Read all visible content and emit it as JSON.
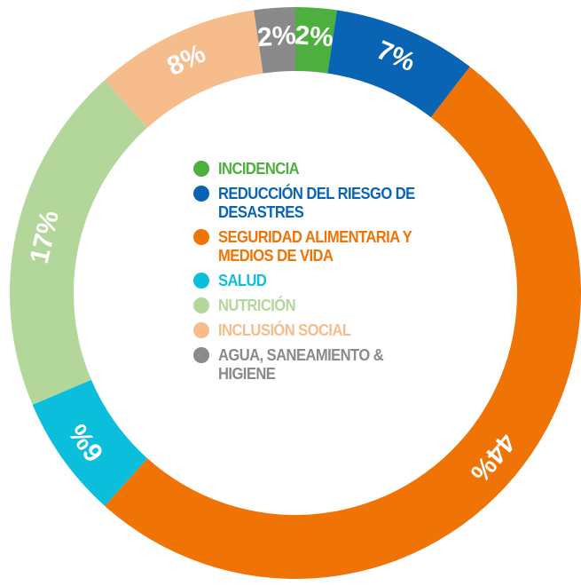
{
  "chart_data": {
    "type": "donut",
    "categories": [
      "INCIDENCIA",
      "REDUCCIÓN DEL RIESGO DE DESASTRES",
      "SEGURIDAD ALIMENTARIA Y MEDIOS DE VIDA",
      "SALUD",
      "NUTRICIÓN",
      "INCLUSIÓN SOCIAL",
      "AGUA, SANEAMIENTO & HIGIENE"
    ],
    "values": [
      2,
      7,
      44,
      6,
      17,
      8,
      2
    ],
    "value_labels": [
      "2%",
      "7%",
      "44%",
      "6%",
      "17%",
      "8%",
      "2%"
    ],
    "colors": [
      "#4caf3e",
      "#0a64b4",
      "#ef7305",
      "#0bbfdc",
      "#b3d69a",
      "#f7bc8c",
      "#8a8a8a"
    ]
  }
}
